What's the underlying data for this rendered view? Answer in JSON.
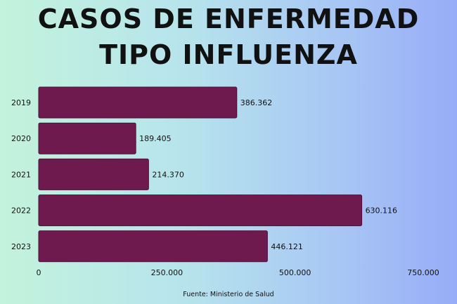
{
  "title_lines": [
    "CASOS DE ENFERMEDAD",
    "TIPO INFLUENZA"
  ],
  "source": "Fuente: Ministerio de Salud",
  "chart_data": {
    "type": "bar",
    "orientation": "horizontal",
    "title": "CASOS DE ENFERMEDAD TIPO INFLUENZA",
    "categories": [
      "2019",
      "2020",
      "2021",
      "2022",
      "2023"
    ],
    "values": [
      386362,
      189405,
      214370,
      630116,
      446121
    ],
    "value_labels": [
      "386.362",
      "189.405",
      "214.370",
      "630.116",
      "446.121"
    ],
    "xlim": [
      0,
      750000
    ],
    "x_ticks": [
      0,
      250000,
      500000,
      750000
    ],
    "x_tick_labels": [
      "0",
      "250.000",
      "500.000",
      "750.000"
    ],
    "grid": false,
    "legend": "none",
    "bar_color": "#6e1a4f",
    "bar_border_color": "#4c0f36"
  }
}
